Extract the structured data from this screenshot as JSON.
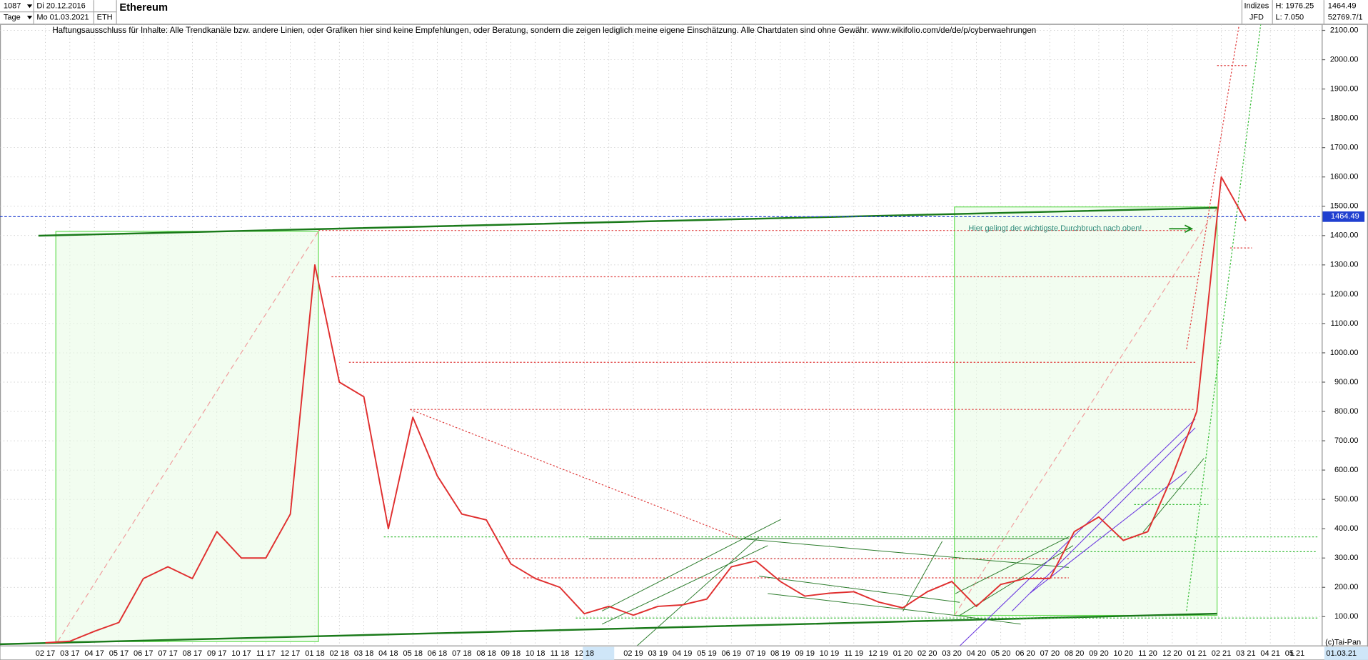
{
  "chart_data": {
    "type": "line",
    "title": "Ethereum",
    "header": {
      "count": "1087",
      "start_date": "Di 20.12.2016",
      "period": "Tage",
      "end_date": "Mo 01.03.2021",
      "symbol": "ETH",
      "group": "Indizes",
      "broker": "JFD",
      "high": "H: 1976.25",
      "low": "L: 7.050",
      "last": "1464.49",
      "volume": "52769.7/1"
    },
    "disclaimer": "Haftungsausschluss für Inhalte: Alle Trendkanäle bzw. andere Linien, oder Grafiken hier sind keine Empfehlungen, oder Beratung, sondern die zeigen lediglich meine eigene Einschätzung. Alle Chartdaten sind ohne Gewähr.  www.wikifolio.com/de/de/p/cyberwaehrungen",
    "annotation": "Hier gelingt der wichtigste Durchbruch nach oben!",
    "categories": [
      "02 17",
      "03 17",
      "04 17",
      "05 17",
      "06 17",
      "07 17",
      "08 17",
      "09 17",
      "10 17",
      "11 17",
      "12 17",
      "01 18",
      "02 18",
      "03 18",
      "04 18",
      "05 18",
      "06 18",
      "07 18",
      "08 18",
      "09 18",
      "10 18",
      "11 18",
      "12 18",
      null,
      "02 19",
      "03 19",
      "04 19",
      "05 19",
      "06 19",
      "07 19",
      "08 19",
      "09 19",
      "10 19",
      "11 19",
      "12 19",
      "01 20",
      "02 20",
      "03 20",
      "04 20",
      "05 20",
      "06 20",
      "07 20",
      "08 20",
      "09 20",
      "10 20",
      "11 20",
      "12 20",
      "01 21",
      "02 21",
      "03 21",
      "04 21",
      "05 21"
    ],
    "values": [
      11,
      16,
      50,
      80,
      230,
      270,
      230,
      390,
      300,
      300,
      450,
      1300,
      900,
      850,
      400,
      780,
      580,
      450,
      430,
      280,
      230,
      200,
      110,
      135,
      105,
      135,
      140,
      160,
      270,
      290,
      220,
      170,
      180,
      185,
      150,
      130,
      185,
      220,
      135,
      210,
      230,
      230,
      390,
      440,
      360,
      390,
      580,
      800,
      1600,
      1450,
      null,
      null
    ],
    "color": "#e03030",
    "current_price": {
      "value": 1464.49,
      "label": "1464.49",
      "color": "#2040d0"
    },
    "ylim": [
      0,
      2120
    ],
    "yticks": [
      {
        "value": 100,
        "label": "100.00"
      },
      {
        "value": 200,
        "label": "200.00"
      },
      {
        "value": 300,
        "label": "300.00"
      },
      {
        "value": 400,
        "label": "400.00"
      },
      {
        "value": 500,
        "label": "500.00"
      },
      {
        "value": 600,
        "label": "600.00"
      },
      {
        "value": 700,
        "label": "700.00"
      },
      {
        "value": 800,
        "label": "800.00"
      },
      {
        "value": 900,
        "label": "900.00"
      },
      {
        "value": 1000,
        "label": "1000.00"
      },
      {
        "value": 1100,
        "label": "1100.00"
      },
      {
        "value": 1200,
        "label": "1200.00"
      },
      {
        "value": 1300,
        "label": "1300.00"
      },
      {
        "value": 1400,
        "label": "1400.00"
      },
      {
        "value": 1500,
        "label": "1500.00"
      },
      {
        "value": 1600,
        "label": "1600.00"
      },
      {
        "value": 1700,
        "label": "1700.00"
      },
      {
        "value": 1800,
        "label": "1800.00"
      },
      {
        "value": 1900,
        "label": "1900.00"
      },
      {
        "value": 2000,
        "label": "2000.00"
      },
      {
        "value": 2100,
        "label": "2100.00"
      }
    ],
    "grid": true,
    "footer": {
      "copyright": "(c)Tai-Pan",
      "date": "01.03.21",
      "scale": "L"
    }
  }
}
